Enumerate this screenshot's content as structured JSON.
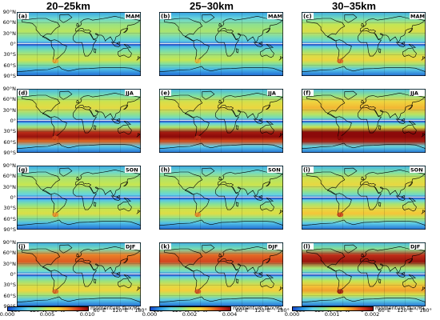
{
  "columns": [
    {
      "title": "20–25km",
      "colorbar": {
        "ticks": [
          "0.000",
          "0.005",
          "0.010"
        ],
        "label": "momentum flux/Pa"
      }
    },
    {
      "title": "25–30km",
      "colorbar": {
        "ticks": [
          "0.000",
          "0.002",
          "0.004"
        ],
        "label": "momentum flux/Pa"
      }
    },
    {
      "title": "30–35km",
      "colorbar": {
        "ticks": [
          "0.000",
          "0.001",
          "0.002"
        ],
        "label": "momentum flux/Pa"
      }
    }
  ],
  "rows": [
    {
      "season": "MAM",
      "letters": [
        "(a)",
        "(b)",
        "(c)"
      ]
    },
    {
      "season": "JJA",
      "letters": [
        "(d)",
        "(e)",
        "(f)"
      ]
    },
    {
      "season": "SON",
      "letters": [
        "(g)",
        "(h)",
        "(i)"
      ]
    },
    {
      "season": "DJF",
      "letters": [
        "(j)",
        "(k)",
        "(l)"
      ]
    }
  ],
  "lat_labels": [
    "90°N",
    "60°N",
    "30°N",
    "0°",
    "30°S",
    "60°S",
    "90°S"
  ],
  "lon_labels": [
    "180°",
    "120°W",
    "60°W",
    "0°",
    "60°E",
    "120°E",
    "180°"
  ],
  "colormap": [
    "#1646c8",
    "#2e9be6",
    "#64d2e6",
    "#7de0a0",
    "#c8e650",
    "#f5d23c",
    "#f08c28",
    "#d23c1e",
    "#8c0a0a"
  ],
  "panels": [
    [
      {
        "intensity": 0.35
      },
      {
        "intensity": 0.3
      },
      {
        "intensity": 0.5
      }
    ],
    [
      {
        "intensity": 0.55
      },
      {
        "intensity": 0.6
      },
      {
        "intensity": 0.75
      }
    ],
    [
      {
        "intensity": 0.4
      },
      {
        "intensity": 0.42
      },
      {
        "intensity": 0.58
      }
    ],
    [
      {
        "intensity": 0.5
      },
      {
        "intensity": 0.55
      },
      {
        "intensity": 0.7
      }
    ]
  ]
}
